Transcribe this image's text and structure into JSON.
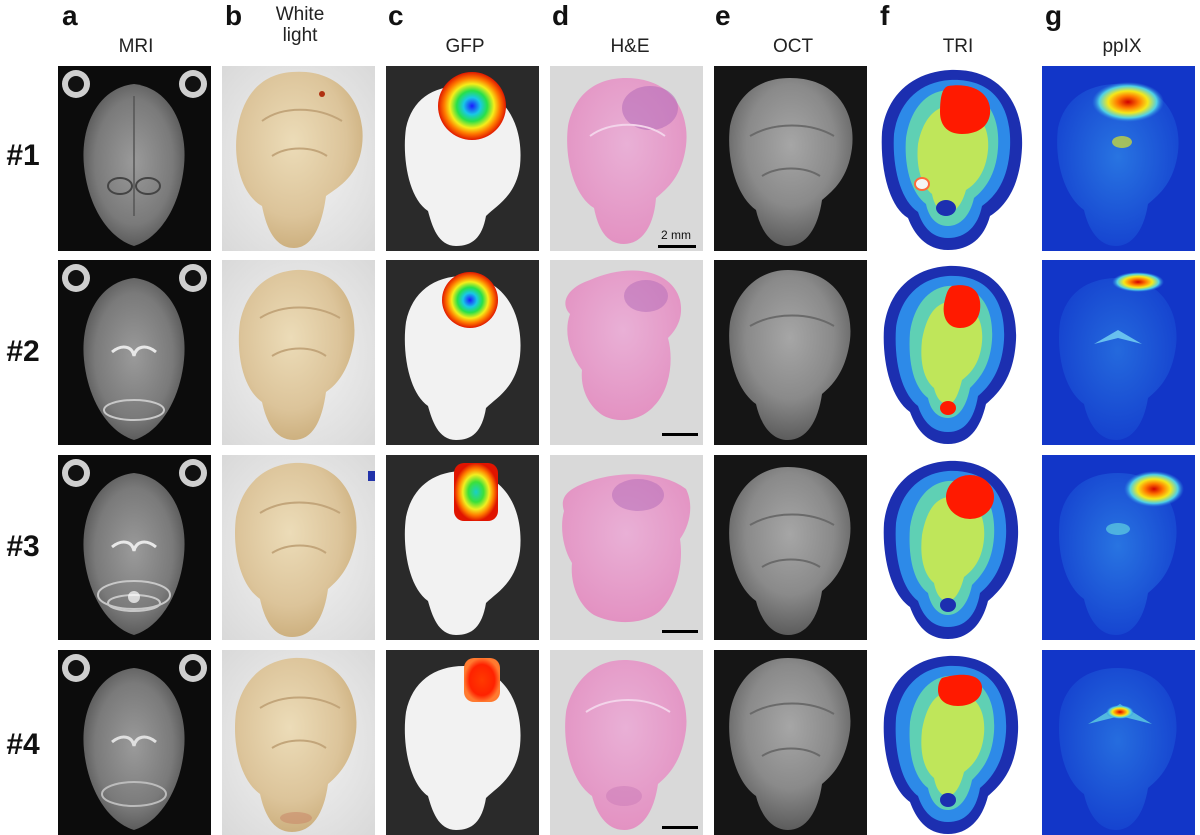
{
  "panel_letters": [
    "a",
    "b",
    "c",
    "d",
    "e",
    "f",
    "g"
  ],
  "column_titles": [
    "MRI",
    "White\nlight",
    "GFP",
    "H&E",
    "OCT",
    "TRI",
    "ppIX"
  ],
  "row_labels": [
    "#1",
    "#2",
    "#3",
    "#4"
  ],
  "scale_bar_label": "2 mm",
  "colors": {
    "mri_background": "#0c0c0c",
    "white_light_tissue": "#dcc9a2",
    "he_stain": "#e7a6cf",
    "tri_outer": "#1c2fb0",
    "ppix_background": "#1236c8",
    "tumor_hot": "#ff1a00"
  }
}
